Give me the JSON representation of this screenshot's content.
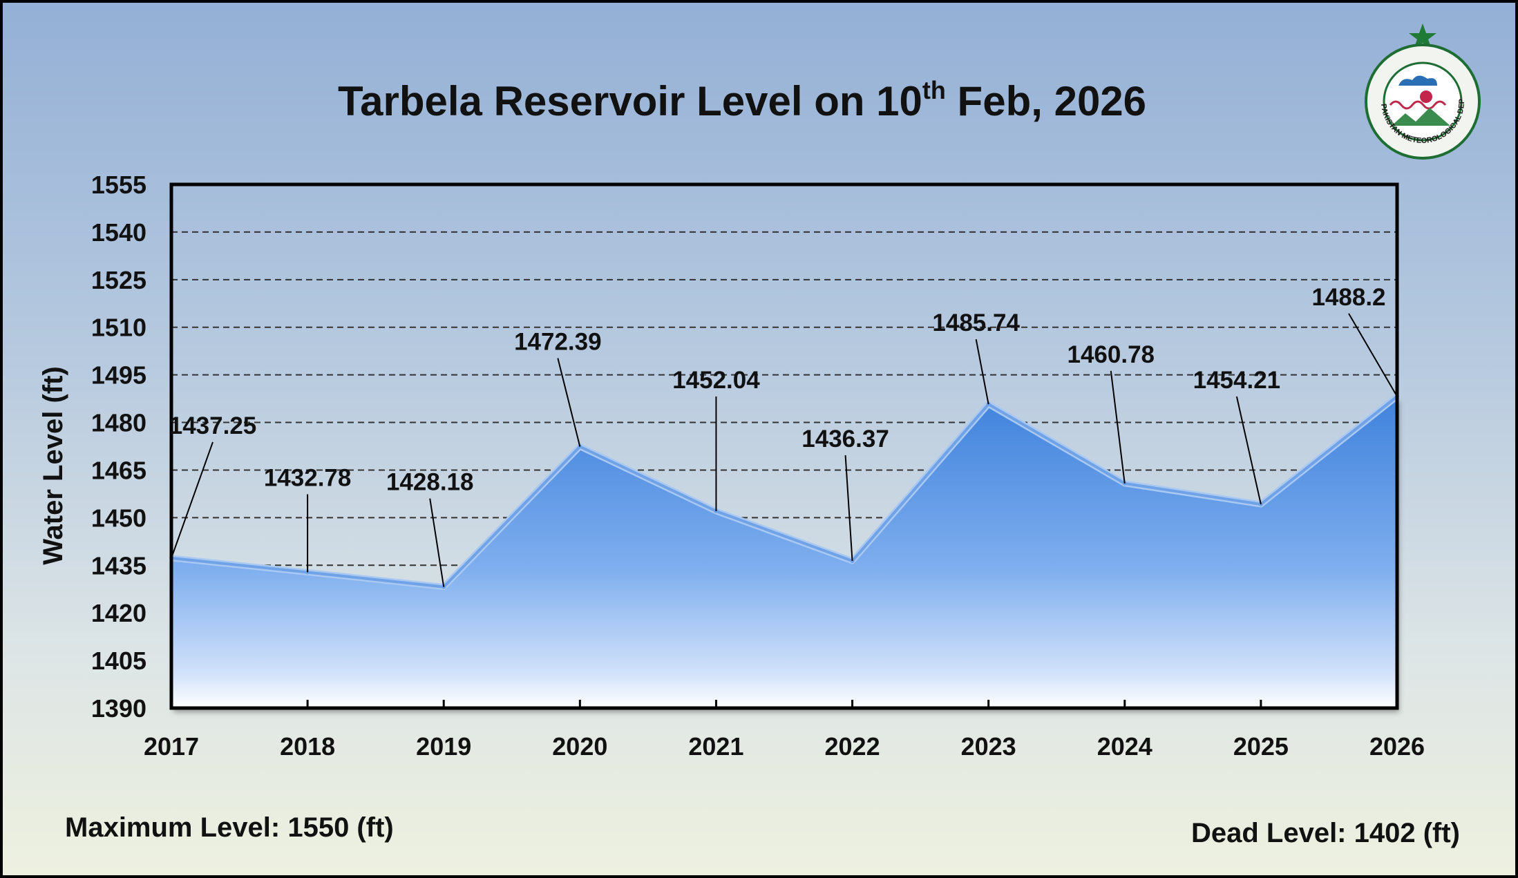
{
  "chart_data": {
    "type": "area",
    "title_main": "Tarbela Reservoir Level on 10",
    "title_sup": "th",
    "title_end": " Feb, 2026",
    "xlabel": "",
    "ylabel": "Water Level (ft)",
    "categories": [
      "2017",
      "2018",
      "2019",
      "2020",
      "2021",
      "2022",
      "2023",
      "2024",
      "2025",
      "2026"
    ],
    "values": [
      1437.25,
      1432.78,
      1428.18,
      1472.39,
      1452.04,
      1436.37,
      1485.74,
      1460.78,
      1454.21,
      1488.2
    ],
    "data_labels": [
      "1437.25",
      "1432.78",
      "1428.18",
      "1472.39",
      "1452.04",
      "1436.37",
      "1485.74",
      "1460.78",
      "1454.21",
      "1488.2"
    ],
    "ylim": [
      1390,
      1555
    ],
    "yticks": [
      1555,
      1540,
      1525,
      1510,
      1495,
      1480,
      1465,
      1450,
      1435,
      1420,
      1405,
      1390
    ],
    "grid": "horizontal dashed",
    "colors": {
      "area": "#5b96e4",
      "line": "#6fa2e6",
      "grid": "#333333"
    }
  },
  "footer": {
    "max_level": "Maximum Level: 1550 (ft)",
    "dead_level": "Dead Level: 1402 (ft)"
  },
  "logo": {
    "name": "pakistan-meteorological-department-seal",
    "text": "PAKISTAN METEOROLOGICAL DEPARTMENT"
  }
}
